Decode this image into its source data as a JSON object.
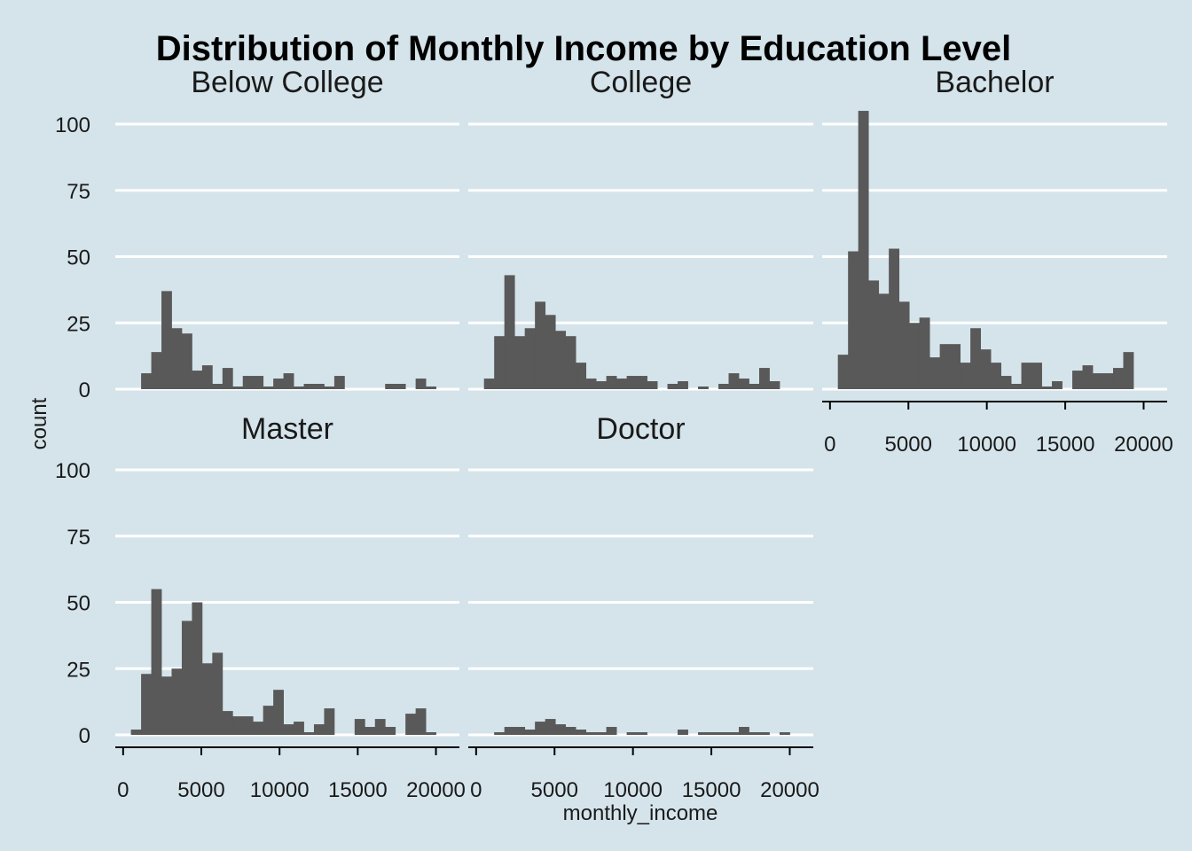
{
  "chart_data": {
    "type": "bar",
    "subtype": "faceted-histogram",
    "title": "Distribution of Monthly Income by Education Level",
    "xlabel": "monthly_income",
    "ylabel": "count",
    "xlim": [
      0,
      21000
    ],
    "ylim": [
      0,
      110
    ],
    "x_ticks": [
      0,
      5000,
      10000,
      15000,
      20000
    ],
    "y_ticks": [
      0,
      25,
      50,
      75,
      100
    ],
    "bins": {
      "start": 500,
      "width": 650,
      "count": 30
    },
    "grid": "horizontal-major",
    "bar_color": "#595959",
    "background_color": "#d5e4eb",
    "grid_color": "#ffffff",
    "facets": [
      {
        "name": "Below College",
        "counts": [
          0,
          6,
          14,
          37,
          23,
          21,
          7,
          9,
          2,
          8,
          1,
          5,
          5,
          1,
          4,
          6,
          1,
          2,
          2,
          1,
          5,
          0,
          0,
          0,
          0,
          2,
          2,
          0,
          4,
          1
        ]
      },
      {
        "name": "College",
        "counts": [
          4,
          20,
          43,
          20,
          23,
          33,
          28,
          22,
          20,
          10,
          4,
          3,
          5,
          4,
          5,
          5,
          3,
          0,
          2,
          3,
          0,
          1,
          0,
          2,
          6,
          4,
          2,
          8,
          3,
          0
        ]
      },
      {
        "name": "Bachelor",
        "counts": [
          13,
          52,
          105,
          41,
          36,
          53,
          33,
          25,
          27,
          12,
          17,
          17,
          10,
          23,
          15,
          10,
          5,
          2,
          10,
          10,
          1,
          3,
          0,
          7,
          9,
          6,
          6,
          8,
          14,
          0
        ]
      },
      {
        "name": "Master",
        "counts": [
          2,
          23,
          55,
          22,
          25,
          43,
          50,
          27,
          31,
          9,
          7,
          7,
          5,
          11,
          17,
          4,
          5,
          1,
          4,
          10,
          0,
          0,
          6,
          3,
          6,
          3,
          0,
          8,
          10,
          1
        ]
      },
      {
        "name": "Doctor",
        "counts": [
          0,
          1,
          3,
          3,
          2,
          5,
          6,
          4,
          3,
          2,
          1,
          1,
          3,
          0,
          1,
          1,
          0,
          0,
          0,
          2,
          0,
          1,
          1,
          1,
          1,
          3,
          1,
          1,
          0,
          1
        ]
      }
    ]
  }
}
